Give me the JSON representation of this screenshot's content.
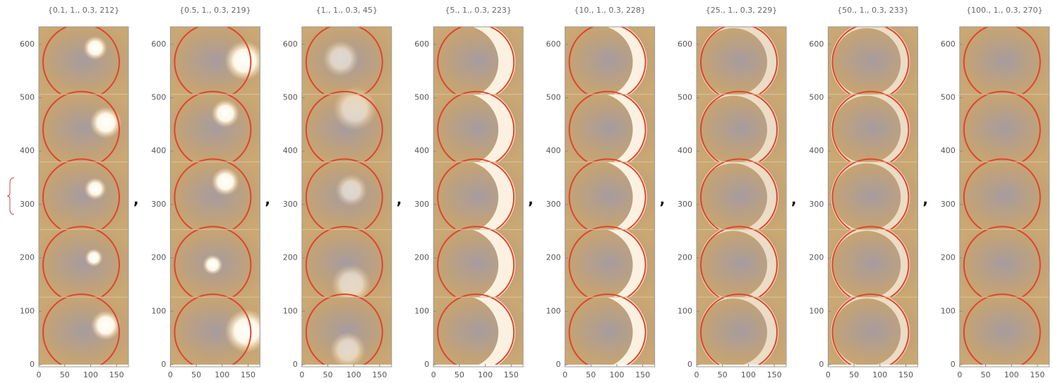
{
  "panels": [
    {
      "title": "{0.1, 1., 0.3, 212}"
    },
    {
      "title": "{0.5, 1., 0.3, 219}"
    },
    {
      "title": "{1., 1., 0.3, 45}"
    },
    {
      "title": "{5., 1., 0.3, 223}"
    },
    {
      "title": "{10., 1., 0.3, 228}"
    },
    {
      "title": "{25., 1., 0.3, 229}"
    },
    {
      "title": "{50., 1., 0.3, 233}"
    },
    {
      "title": "{100., 1., 0.3, 270}"
    }
  ],
  "axes": {
    "yticks": [
      "0",
      "100",
      "200",
      "300",
      "400",
      "500",
      "600"
    ],
    "xticks": [
      "0",
      "50",
      "100",
      "150"
    ]
  },
  "separator": ","
}
